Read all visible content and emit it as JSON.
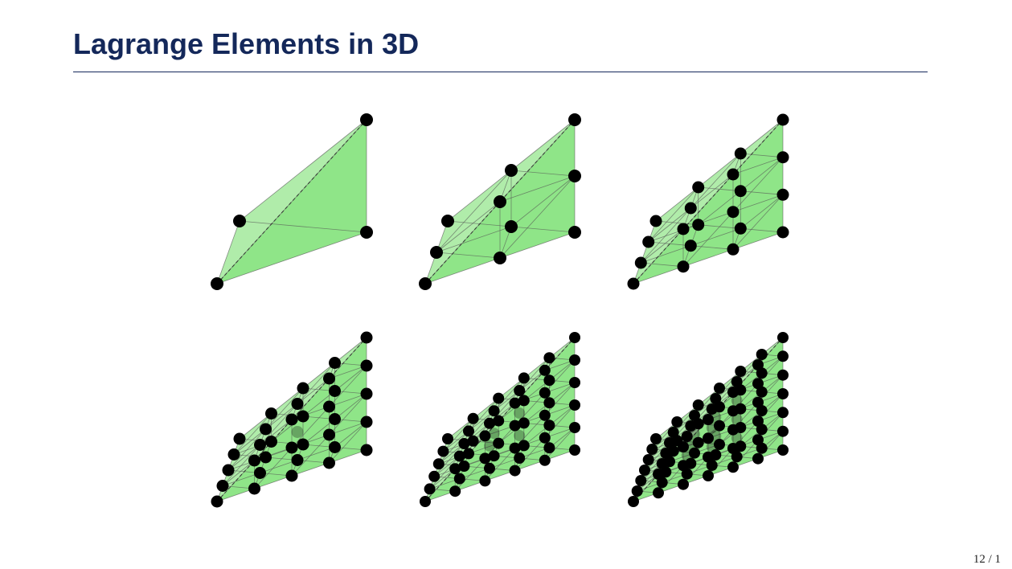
{
  "slide": {
    "title": "Lagrange Elements in 3D",
    "page_number": "12 / 1"
  },
  "colors": {
    "title": "#14285a",
    "face_fill": "#5ad84e",
    "edge": "#555555",
    "node": "#000000"
  },
  "elements": [
    {
      "degree": 1
    },
    {
      "degree": 2
    },
    {
      "degree": 3
    },
    {
      "degree": 4
    },
    {
      "degree": 5
    },
    {
      "degree": 6
    }
  ]
}
